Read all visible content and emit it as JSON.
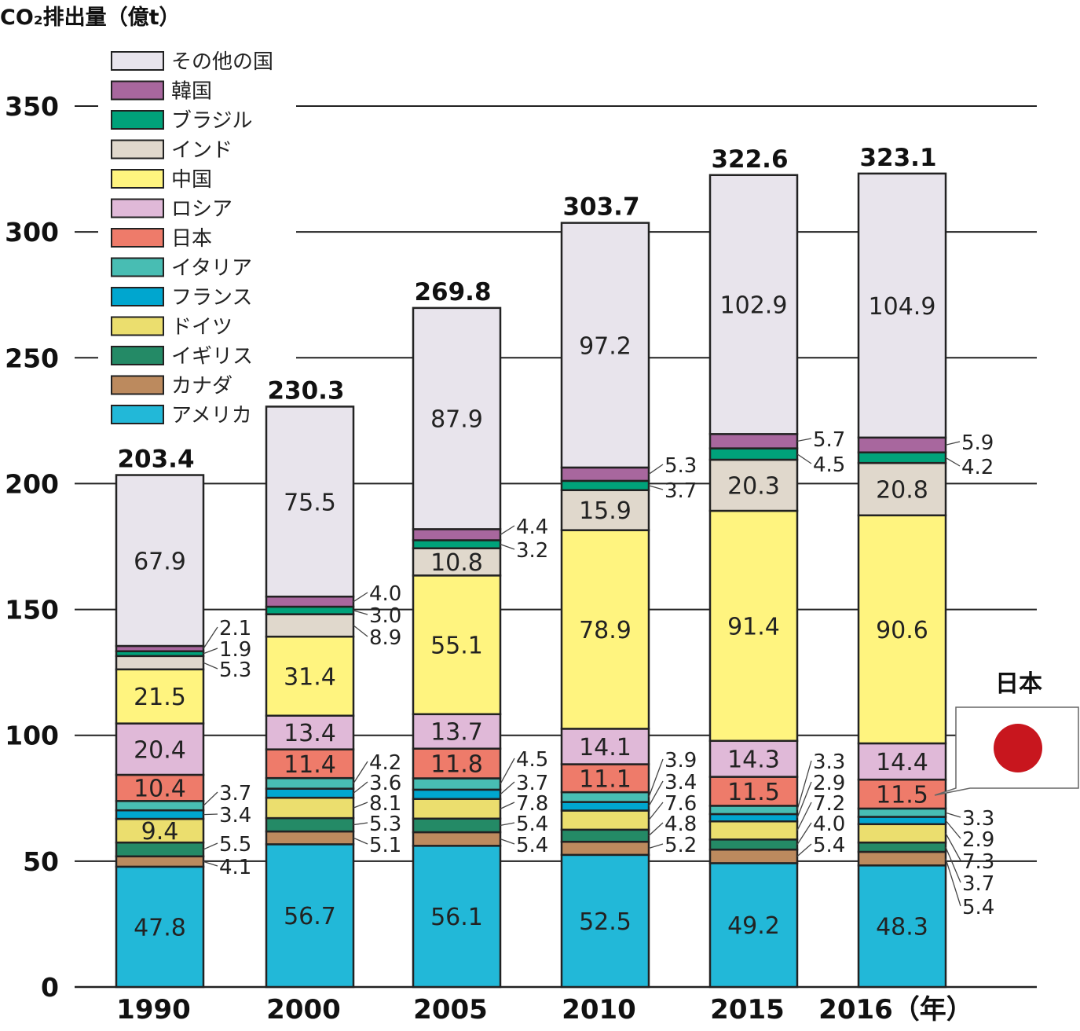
{
  "chart_data": {
    "type": "bar",
    "stacked": true,
    "ylabel": "CO₂排出量（億t）",
    "xlabel_suffix": "（年）",
    "ylim": [
      0,
      350
    ],
    "yticks": [
      0,
      50,
      100,
      150,
      200,
      250,
      300,
      350
    ],
    "grid": true,
    "legend_position": "top-left",
    "categories": [
      "1990",
      "2000",
      "2005",
      "2010",
      "2015",
      "2016"
    ],
    "totals": [
      "203.4",
      "230.3",
      "269.8",
      "303.7",
      "322.6",
      "323.1"
    ],
    "series": [
      {
        "name": "アメリカ",
        "color": "#22b8d8",
        "values": [
          47.8,
          56.7,
          56.1,
          52.5,
          49.2,
          48.3
        ]
      },
      {
        "name": "カナダ",
        "color": "#bc8a5e",
        "values": [
          4.1,
          5.1,
          5.4,
          5.2,
          5.4,
          5.4
        ]
      },
      {
        "name": "イギリス",
        "color": "#248a66",
        "values": [
          5.5,
          5.3,
          5.4,
          4.8,
          4.0,
          3.7
        ]
      },
      {
        "name": "ドイツ",
        "color": "#ebde6e",
        "values": [
          9.4,
          8.1,
          7.8,
          7.6,
          7.2,
          7.3
        ]
      },
      {
        "name": "フランス",
        "color": "#00a6cf",
        "values": [
          3.4,
          3.6,
          3.7,
          3.4,
          2.9,
          2.9
        ]
      },
      {
        "name": "イタリア",
        "color": "#48bdb3",
        "values": [
          3.7,
          4.2,
          4.5,
          3.9,
          3.3,
          3.3
        ]
      },
      {
        "name": "日本",
        "color": "#ee7b6a",
        "values": [
          10.4,
          11.4,
          11.8,
          11.1,
          11.5,
          11.5
        ]
      },
      {
        "name": "ロシア",
        "color": "#e0b9d8",
        "values": [
          20.4,
          13.4,
          13.7,
          14.1,
          14.3,
          14.4
        ]
      },
      {
        "name": "中国",
        "color": "#fff47f",
        "values": [
          21.5,
          31.4,
          55.1,
          78.9,
          91.4,
          90.6
        ]
      },
      {
        "name": "インド",
        "color": "#e0d8cc",
        "values": [
          5.3,
          8.9,
          10.8,
          15.9,
          20.3,
          20.8
        ]
      },
      {
        "name": "ブラジル",
        "color": "#00a27a",
        "values": [
          1.9,
          3.0,
          3.2,
          3.7,
          4.5,
          4.2
        ]
      },
      {
        "name": "韓国",
        "color": "#a8679e",
        "values": [
          2.1,
          4.0,
          4.4,
          5.3,
          5.7,
          5.9
        ]
      },
      {
        "name": "その他の国",
        "color": "#e8e4ec",
        "values": [
          67.9,
          75.5,
          87.9,
          97.2,
          102.9,
          104.9
        ]
      }
    ],
    "annotation": {
      "label": "日本",
      "flag_color": "#c8161e"
    }
  }
}
